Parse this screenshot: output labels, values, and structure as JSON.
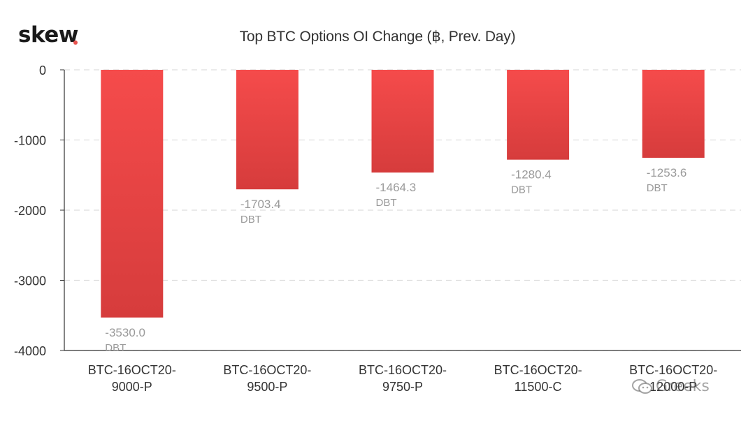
{
  "logo": {
    "text": "skew",
    "dot_color": "#e8534f"
  },
  "watermark": {
    "text": "Greeks",
    "icon": "wechat-icon"
  },
  "chart_data": {
    "type": "bar",
    "title": "Top BTC Options OI Change (฿, Prev. Day)",
    "categories": [
      [
        "BTC-16OCT20-",
        "9000-P"
      ],
      [
        "BTC-16OCT20-",
        "9500-P"
      ],
      [
        "BTC-16OCT20-",
        "9750-P"
      ],
      [
        "BTC-16OCT20-",
        "11500-C"
      ],
      [
        "BTC-16OCT20-",
        "12000-P"
      ]
    ],
    "values": [
      -3530.0,
      -1703.4,
      -1464.3,
      -1280.4,
      -1253.6
    ],
    "value_labels": [
      "-3530.0",
      "-1703.4",
      "-1464.3",
      "-1280.4",
      "-1253.6"
    ],
    "unit_label": "DBT",
    "ylim": [
      -4000,
      0
    ],
    "yticks": [
      0,
      -1000,
      -2000,
      -3000,
      -4000
    ],
    "ytick_labels": [
      "0",
      "-1000",
      "-2000",
      "-3000",
      "-4000"
    ],
    "grid": true,
    "colors": {
      "bar_top": "#f54b4b",
      "bar_bottom": "#d63c3c",
      "label": "#9a9a9a",
      "axis": "#333333",
      "grid": "#dddddd"
    }
  }
}
